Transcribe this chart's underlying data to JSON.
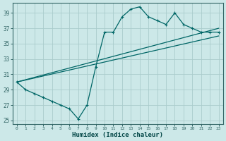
{
  "bg_color": "#cce8e8",
  "grid_color": "#aacccc",
  "line_color": "#006666",
  "xlabel": "Humidex (Indice chaleur)",
  "xlim": [
    -0.5,
    23.5
  ],
  "ylim": [
    24.5,
    40.3
  ],
  "xticks": [
    0,
    1,
    2,
    3,
    4,
    5,
    6,
    7,
    8,
    9,
    10,
    11,
    12,
    13,
    14,
    15,
    16,
    17,
    18,
    19,
    20,
    21,
    22,
    23
  ],
  "yticks": [
    25,
    27,
    29,
    31,
    33,
    35,
    37,
    39
  ],
  "line1_x": [
    0,
    1,
    2,
    3,
    4,
    5,
    6,
    7,
    8,
    9,
    10,
    11,
    12,
    13,
    14,
    15,
    16,
    17,
    18,
    19,
    20,
    21,
    22,
    23
  ],
  "line1_y": [
    30.0,
    29.0,
    28.5,
    28.0,
    27.5,
    27.0,
    26.5,
    25.2,
    27.0,
    32.0,
    36.5,
    36.5,
    38.5,
    39.5,
    39.8,
    38.5,
    38.0,
    37.5,
    39.0,
    37.5,
    37.0,
    36.5,
    36.5,
    36.5
  ],
  "line2_x": [
    0,
    23
  ],
  "line2_y": [
    30.0,
    36.0
  ],
  "line3_x": [
    0,
    23
  ],
  "line3_y": [
    30.0,
    37.0
  ],
  "spine_color": "#336666",
  "tick_color": "#336666",
  "xlabel_color": "#004444"
}
